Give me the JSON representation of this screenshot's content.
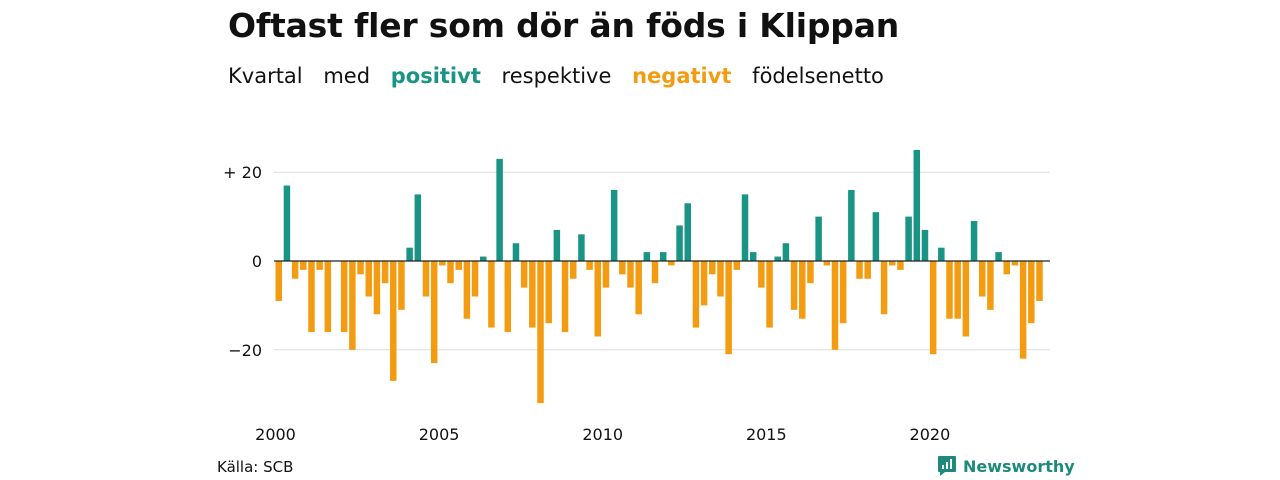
{
  "title": "Oftast fler som dör än föds i Klippan",
  "subtitle": {
    "part1": "Kvartal",
    "part2": "med",
    "positive": "positivt",
    "part3": "respektive",
    "negative": "negativt",
    "part4": "födelsenetto"
  },
  "source": "Källa: SCB",
  "brand": {
    "name": "Newsworthy",
    "icon": "newsworthy-logo-icon"
  },
  "colors": {
    "positive": "#1a9484",
    "negative": "#f39c12",
    "grid": "#dddddd"
  },
  "chart_data": {
    "type": "bar",
    "title": "Oftast fler som dör än föds i Klippan",
    "xlabel": "",
    "ylabel": "",
    "ylim": [
      -33,
      26
    ],
    "y_ticks": [
      20,
      0,
      -20
    ],
    "y_tick_labels": [
      "+ 20",
      "0",
      "−20"
    ],
    "x_ticks": [
      2000,
      2005,
      2010,
      2015,
      2020
    ],
    "start_year": 2000,
    "values": [
      -9,
      17,
      -4,
      -2,
      -16,
      -2,
      -16,
      0,
      -16,
      -20,
      -3,
      -8,
      -12,
      -5,
      -27,
      -11,
      3,
      15,
      -8,
      -23,
      -1,
      -5,
      -2,
      -13,
      -8,
      1,
      -15,
      23,
      -16,
      4,
      -6,
      -15,
      -32,
      -14,
      7,
      -16,
      -4,
      6,
      -2,
      -17,
      -6,
      16,
      -3,
      -6,
      -12,
      2,
      -5,
      2,
      -1,
      8,
      13,
      -15,
      -10,
      -3,
      -8,
      -21,
      -2,
      15,
      2,
      -6,
      -15,
      1,
      4,
      -11,
      -13,
      -5,
      10,
      -1,
      -20,
      -14,
      16,
      -4,
      -4,
      11,
      -12,
      -1,
      -2,
      10,
      25,
      7,
      -21,
      3,
      -13,
      -13,
      -17,
      9,
      -8,
      -11,
      2,
      -3,
      -1,
      -22,
      -14,
      -9
    ]
  }
}
